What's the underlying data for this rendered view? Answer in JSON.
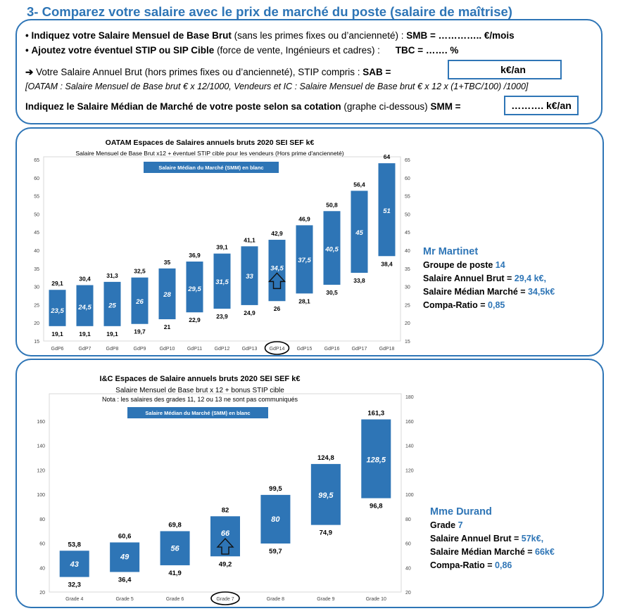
{
  "header": {
    "title": "3- Comparez votre salaire avec le prix de marché du poste (salaire de maîtrise)"
  },
  "form": {
    "line1_bullet": "•",
    "line1_bold": "Indiquez votre Salaire Mensuel de Base Brut",
    "line1_rest": " (sans les primes fixes ou d’ancienneté) : ",
    "line1_field": "SMB =   …………..  €/mois",
    "line2_bullet": "•",
    "line2_bold": "Ajoutez votre éventuel STIP ou SIP Cible",
    "line2_rest": " (force de vente, Ingénieurs et cadres) :",
    "line2_field": "TBC =       …….  %",
    "line3_arrow": "➔",
    "line3_text": " Votre Salaire Annuel Brut (hors primes fixes ou d’ancienneté), STIP compris :  ",
    "line3_field": "SAB =",
    "sab_box": "k€/an",
    "formula": "[OATAM : Salaire Mensuel de Base brut € x 12/1000, Vendeurs et IC : Salaire Mensuel de Base brut € x 12 x (1+TBC/100) /1000]",
    "line4_bold": "Indiquez le Salaire Médian de Marché de votre poste selon sa cotation",
    "line4_rest": " (graphe ci-dessous) ",
    "line4_field": "SMM =",
    "smm_box": "………. k€/an"
  },
  "chart_data": [
    {
      "type": "bar",
      "subtype": "floating-range",
      "title": "OATAM Espaces de Salaires annuels bruts 2020 SEI SEF k€",
      "subtitle": "Salaire Mensuel de Base Brut x12 + éventuel STIP cible pour les vendeurs (Hors prime d'ancienneté)",
      "legend": "Salaire Médian du Marché (SMM) en blanc",
      "categories": [
        "GdP6",
        "GdP7",
        "GdP8",
        "GdP9",
        "GdP10",
        "GdP11",
        "GdP12",
        "GdP13",
        "GdP14",
        "GdP15",
        "GdP16",
        "GdP17",
        "GdP18"
      ],
      "min": [
        19.1,
        19.1,
        19.1,
        19.7,
        21,
        22.9,
        23.9,
        24.9,
        26,
        28.1,
        30.5,
        33.8,
        38.4
      ],
      "max": [
        29.1,
        30.4,
        31.3,
        32.5,
        35,
        36.9,
        39.1,
        41.1,
        42.9,
        46.9,
        50.8,
        56.4,
        64
      ],
      "median": [
        23.5,
        24.5,
        25,
        26,
        28,
        29.5,
        31.5,
        33,
        34.5,
        37.5,
        40.5,
        45,
        51
      ],
      "min_labels": [
        "19,1",
        "19,1",
        "19,1",
        "19,7",
        "21",
        "22,9",
        "23,9",
        "24,9",
        "26",
        "28,1",
        "30,5",
        "33,8",
        "38,4"
      ],
      "max_labels": [
        "29,1",
        "30,4",
        "31,3",
        "32,5",
        "35",
        "36,9",
        "39,1",
        "41,1",
        "42,9",
        "46,9",
        "50,8",
        "56,4",
        "64"
      ],
      "median_labels": [
        "23,5",
        "24,5",
        "25",
        "26",
        "28",
        "29,5",
        "31,5",
        "33",
        "34,5",
        "37,5",
        "40,5",
        "45",
        "51"
      ],
      "ylim": [
        15,
        65
      ],
      "yticks": [
        15,
        20,
        25,
        30,
        35,
        40,
        45,
        50,
        55,
        60,
        65
      ],
      "highlight_index": 8,
      "color": "#2e75b6"
    },
    {
      "type": "bar",
      "subtype": "floating-range",
      "title": "I&C Espaces de Salaire annuels bruts 2020 SEI SEF k€",
      "subtitle": "Salaire Mensuel de Base brut x 12 + bonus STIP cible",
      "note": "Nota : les salaires des grades 11, 12 ou 13 ne sont pas communiqués",
      "legend": "Salaire Médian du Marché (SMM) en blanc",
      "categories": [
        "Grade 4",
        "Grade 5",
        "Grade 6",
        "Grade 7",
        "Grade 8",
        "Grade 9",
        "Grade 10"
      ],
      "min": [
        32.3,
        36.4,
        41.9,
        49.2,
        59.7,
        74.9,
        96.8
      ],
      "max": [
        53.8,
        60.6,
        69.8,
        82,
        99.5,
        124.8,
        161.3
      ],
      "median": [
        43,
        49,
        56,
        66,
        80,
        99.5,
        128.5
      ],
      "min_labels": [
        "32,3",
        "36,4",
        "41,9",
        "49,2",
        "59,7",
        "74,9",
        "96,8"
      ],
      "max_labels": [
        "53,8",
        "60,6",
        "69,8",
        "82",
        "99,5",
        "124,8",
        "161,3"
      ],
      "median_labels": [
        "43",
        "49",
        "56",
        "66",
        "80",
        "99,5",
        "128,5"
      ],
      "ylim": [
        20,
        180
      ],
      "yticks_left": [
        20,
        40,
        60,
        80,
        100,
        120,
        140,
        160
      ],
      "yticks_right": [
        20,
        40,
        60,
        80,
        100,
        120,
        140,
        160,
        180
      ],
      "highlight_index": 3,
      "color": "#2e75b6"
    }
  ],
  "examples": [
    {
      "name": "Mr Martinet",
      "l1_label": "Groupe de poste ",
      "l1_value": "14",
      "l2_label": "Salaire Annuel Brut = ",
      "l2_value": "29,4 k€,",
      "l3_label": "Salaire Médian Marché = ",
      "l3_value": "34,5k€",
      "l4_label": "Compa-Ratio = ",
      "l4_value": "0,85"
    },
    {
      "name": "Mme Durand",
      "l1_label": "Grade ",
      "l1_value": "7",
      "l2_label": "Salaire Annuel Brut = ",
      "l2_value": "57k€,",
      "l3_label": "Salaire Médian Marché  = ",
      "l3_value": "66k€",
      "l4_label": "Compa-Ratio = ",
      "l4_value": "0,86"
    }
  ]
}
